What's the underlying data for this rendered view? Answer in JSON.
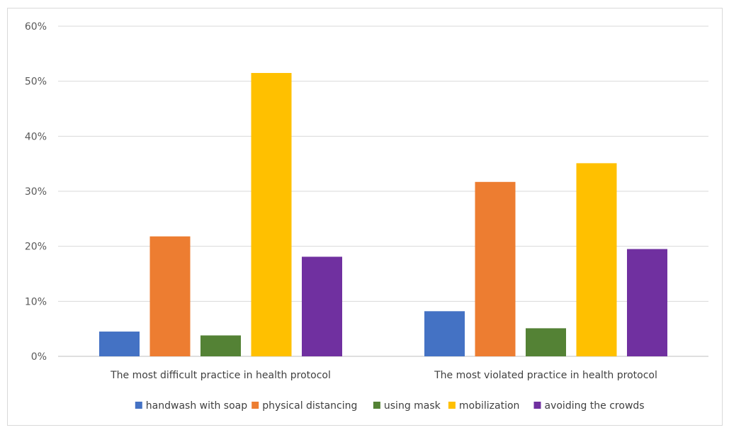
{
  "chart_data": {
    "type": "bar",
    "title": "",
    "xlabel": "",
    "ylabel": "",
    "ylim": [
      0,
      60
    ],
    "yticks": [
      "0%",
      "10%",
      "20%",
      "30%",
      "40%",
      "50%",
      "60%"
    ],
    "grid": true,
    "legend_position": "bottom",
    "categories": [
      "The most difficult practice in health protocol",
      "The most violated practice in health protocol"
    ],
    "series": [
      {
        "name": "handwash with soap",
        "color": "#4472c4",
        "values": [
          4.5,
          8.2
        ]
      },
      {
        "name": "physical distancing",
        "color": "#ed7d31",
        "values": [
          21.8,
          31.7
        ]
      },
      {
        "name": "using mask",
        "color": "#548235",
        "values": [
          3.8,
          5.1
        ]
      },
      {
        "name": "mobilization",
        "color": "#ffc000",
        "values": [
          51.5,
          35.1
        ]
      },
      {
        "name": "avoiding the crowds",
        "color": "#7030a0",
        "values": [
          18.1,
          19.5
        ]
      }
    ]
  }
}
